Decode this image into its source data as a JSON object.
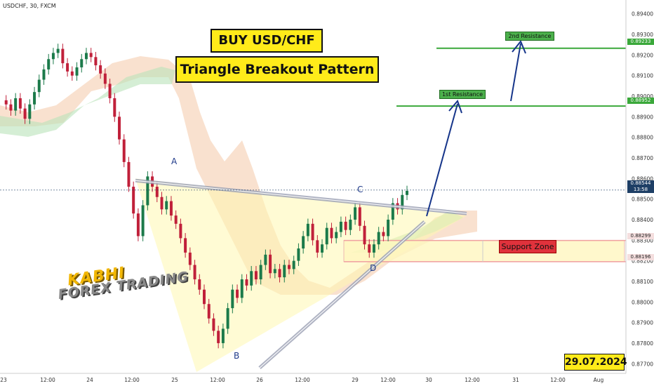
{
  "symbol": "USDCHF, 30, FXCM",
  "title_line1": "BUY USD/CHF",
  "title_line2": "Triangle Breakout Pattern",
  "date_label": "29.07.2024",
  "watermark": {
    "line1": "KABHI",
    "line2": "FOREX TRADING"
  },
  "levels": {
    "resistance1": {
      "label": "1st Resistance",
      "price": 0.88952,
      "price_text": "0.88952",
      "color": "#3aa83a"
    },
    "resistance2": {
      "label": "2nd Resistance",
      "price": 0.89233,
      "price_text": "0.89233",
      "color": "#3aa83a"
    },
    "support_top": {
      "price": 0.88299,
      "price_text": "0.88299"
    },
    "support_bottom": {
      "price": 0.88196,
      "price_text": "0.88196"
    },
    "support_label": "Support Zone",
    "current": {
      "price": 0.88544,
      "price_text": "0.88544",
      "time": "13:58",
      "color": "#1e3f66"
    }
  },
  "points": {
    "A": "A",
    "B": "B",
    "C": "C",
    "D": "D"
  },
  "chart_data": {
    "type": "candlestick",
    "title": "BUY USD/CHF",
    "subtitle": "Triangle Breakout Pattern",
    "y_ticks": [
      "0.89400",
      "0.89300",
      "0.89200",
      "0.89100",
      "0.89000",
      "0.88900",
      "0.88800",
      "0.88700",
      "0.88600",
      "0.88500",
      "0.88400",
      "0.88300",
      "0.88200",
      "0.88100",
      "0.88000",
      "0.87900",
      "0.87800",
      "0.87700"
    ],
    "ylim": [
      0.8766,
      0.8944
    ],
    "x_ticks": [
      "23",
      "12:00",
      "24",
      "12:00",
      "25",
      "12:00",
      "26",
      "12:00",
      "29",
      "12:00",
      "30",
      "12:00",
      "31",
      "12:00",
      "Aug"
    ],
    "ohlc_path": [
      0.8898,
      0.8896,
      0.8893,
      0.8899,
      0.8894,
      0.8889,
      0.8896,
      0.8902,
      0.8908,
      0.8913,
      0.8918,
      0.8921,
      0.8923,
      0.8916,
      0.8912,
      0.891,
      0.8914,
      0.8918,
      0.8921,
      0.8919,
      0.8915,
      0.8911,
      0.8906,
      0.8899,
      0.889,
      0.8879,
      0.8868,
      0.8856,
      0.8843,
      0.8832,
      0.8847,
      0.8861,
      0.8856,
      0.8851,
      0.8845,
      0.8849,
      0.8842,
      0.8838,
      0.8831,
      0.8824,
      0.8818,
      0.8811,
      0.8806,
      0.8799,
      0.8792,
      0.8786,
      0.878,
      0.8787,
      0.8797,
      0.8806,
      0.8802,
      0.8811,
      0.8808,
      0.8815,
      0.8811,
      0.8818,
      0.8823,
      0.8814,
      0.8816,
      0.8812,
      0.8818,
      0.8816,
      0.882,
      0.8826,
      0.8832,
      0.8838,
      0.883,
      0.8824,
      0.8828,
      0.8836,
      0.8831,
      0.8834,
      0.8839,
      0.8835,
      0.884,
      0.8846,
      0.8837,
      0.8828,
      0.8824,
      0.8828,
      0.8834,
      0.8832,
      0.884,
      0.8848,
      0.8845,
      0.8852,
      0.8854
    ],
    "trendlines": [
      {
        "name": "upper",
        "from": [
          "25",
          0.8859
        ],
        "to": [
          "30",
          0.8843
        ]
      },
      {
        "name": "lower",
        "from": [
          "26",
          0.8768
        ],
        "to": [
          "30",
          0.8839
        ]
      }
    ],
    "annotations": [
      "A",
      "B",
      "C",
      "D"
    ],
    "grid": false,
    "legend": "none"
  }
}
